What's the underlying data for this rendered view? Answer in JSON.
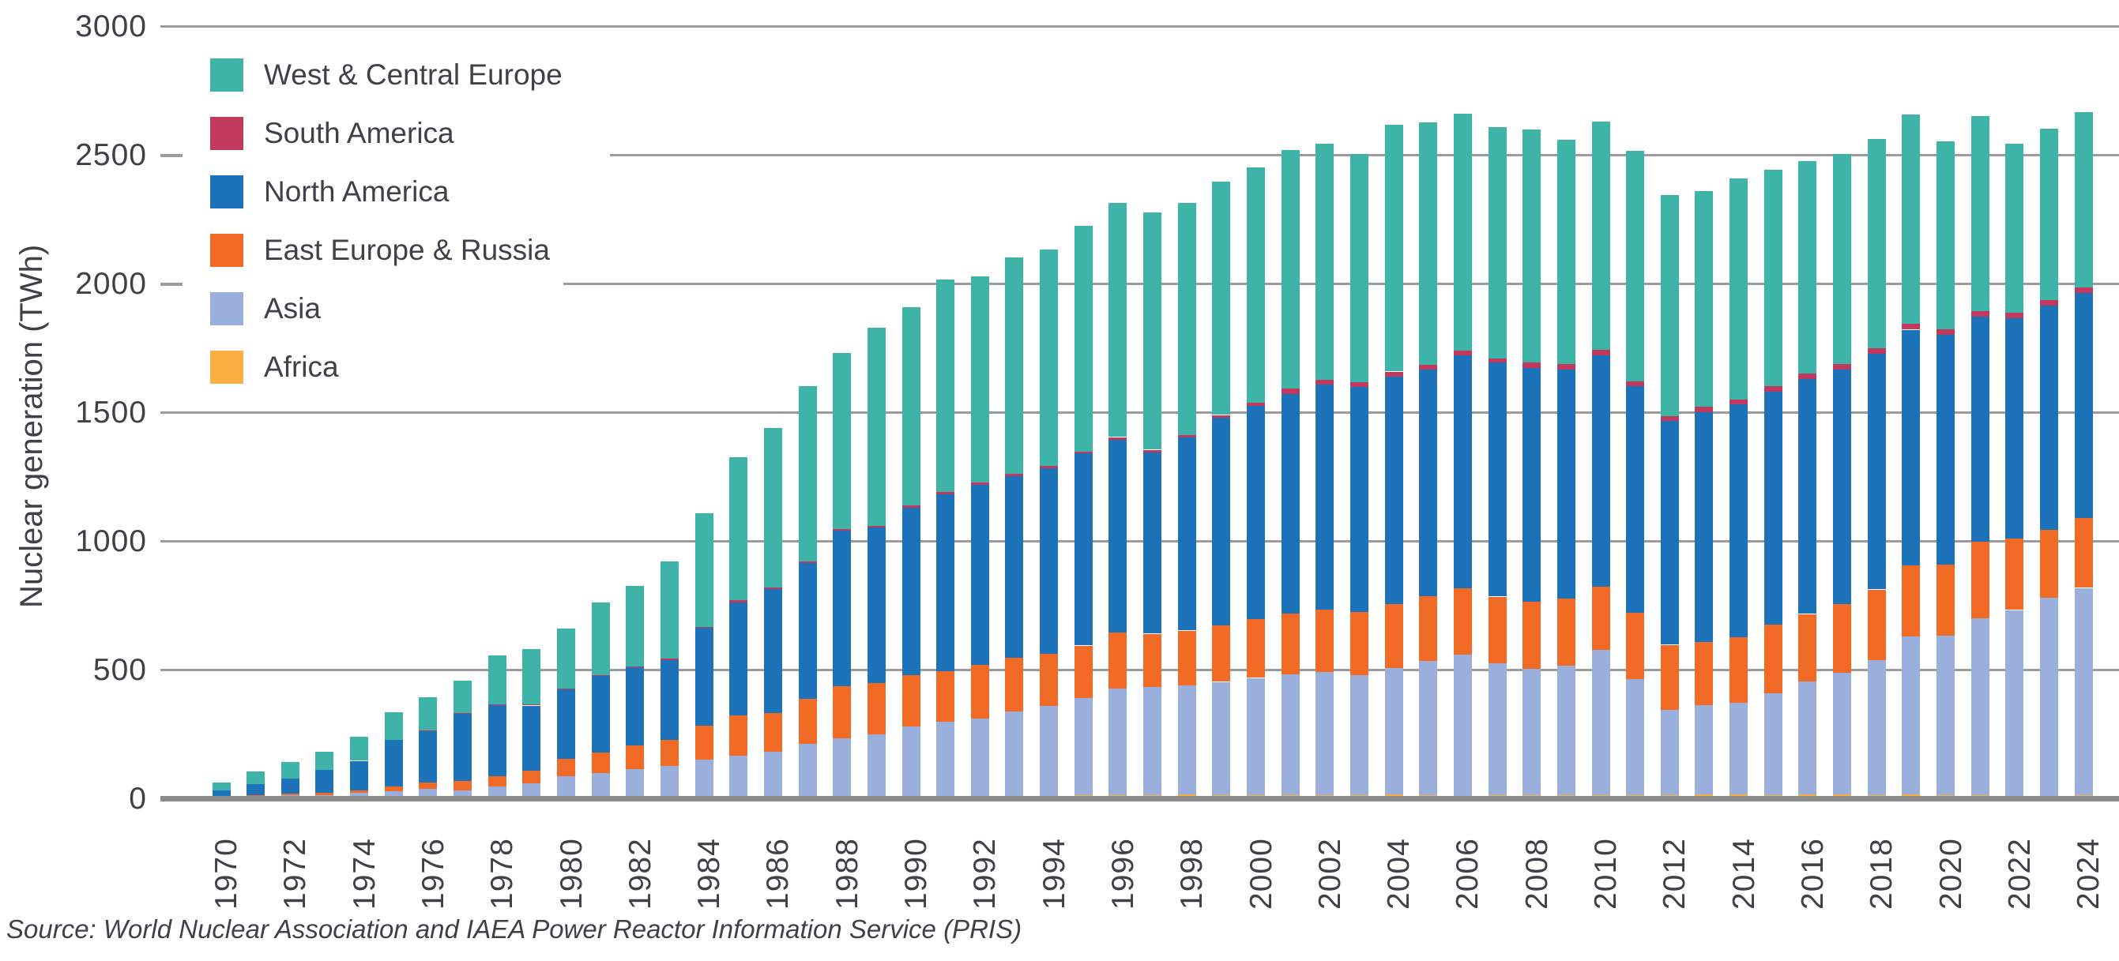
{
  "source_note": "Source: World Nuclear Association and IAEA Power Reactor Information Service (PRIS)",
  "chart_data": {
    "type": "bar",
    "stacked": true,
    "title": "",
    "xlabel": "",
    "ylabel": "Nuclear generation (TWh)",
    "ylim": [
      0,
      3000
    ],
    "yticks": [
      3000,
      2500,
      2000,
      1500,
      1000,
      500,
      0
    ],
    "grid": "horizontal",
    "legend_position": "top-left",
    "legend_order": [
      "West & Central Europe",
      "South America",
      "North America",
      "East Europe & Russia",
      "Asia",
      "Africa"
    ],
    "x": [
      1970,
      1971,
      1972,
      1973,
      1974,
      1975,
      1976,
      1977,
      1978,
      1979,
      1980,
      1981,
      1982,
      1983,
      1984,
      1985,
      1986,
      1987,
      1988,
      1989,
      1990,
      1991,
      1992,
      1993,
      1994,
      1995,
      1996,
      1997,
      1998,
      1999,
      2000,
      2001,
      2002,
      2003,
      2004,
      2005,
      2006,
      2007,
      2008,
      2009,
      2010,
      2011,
      2012,
      2013,
      2014,
      2015,
      2016,
      2017,
      2018,
      2019,
      2020,
      2021,
      2022,
      2023,
      2024
    ],
    "xtick_labels": [
      "1970",
      "1972",
      "1974",
      "1976",
      "1978",
      "1980",
      "1982",
      "1984",
      "1986",
      "1988",
      "1990",
      "1992",
      "1994",
      "1996",
      "1998",
      "2000",
      "2002",
      "2004",
      "2006",
      "2008",
      "2010",
      "2012",
      "2014",
      "2016",
      "2018",
      "2020",
      "2022",
      "2024"
    ],
    "units": "TWh",
    "series": [
      {
        "name": "Africa",
        "color": "#f9af42",
        "values": [
          0,
          0,
          0,
          0,
          0,
          0,
          0,
          0,
          0,
          0,
          0,
          0,
          0,
          0,
          5,
          5,
          6,
          6,
          7,
          9,
          8,
          9,
          9,
          7,
          10,
          11,
          12,
          13,
          14,
          13,
          13,
          11,
          12,
          13,
          14,
          12,
          10,
          11,
          12,
          12,
          12,
          13,
          13,
          14,
          15,
          12,
          15,
          15,
          11,
          14,
          12,
          12,
          10,
          8,
          13
        ]
      },
      {
        "name": "Asia",
        "color": "#9aafdb",
        "values": [
          5,
          8,
          11,
          12,
          20,
          28,
          36,
          32,
          46,
          58,
          86,
          98,
          112,
          125,
          145,
          160,
          175,
          205,
          225,
          240,
          272,
          290,
          300,
          330,
          350,
          380,
          415,
          420,
          425,
          440,
          455,
          470,
          480,
          465,
          492,
          523,
          549,
          515,
          492,
          504,
          564,
          450,
          332,
          348,
          356,
          397,
          440,
          473,
          527,
          616,
          620,
          687,
          722,
          772,
          805
        ]
      },
      {
        "name": "East Europe & Russia",
        "color": "#f26b26",
        "values": [
          4,
          5,
          7,
          9,
          12,
          18,
          24,
          36,
          40,
          50,
          67,
          80,
          93,
          103,
          133,
          156,
          151,
          175,
          203,
          200,
          200,
          195,
          208,
          208,
          202,
          203,
          217,
          207,
          213,
          220,
          227,
          236,
          241,
          246,
          250,
          251,
          257,
          258,
          261,
          260,
          247,
          257,
          253,
          245,
          254,
          267,
          262,
          268,
          274,
          276,
          276,
          297,
          278,
          263,
          270
        ]
      },
      {
        "name": "North America",
        "color": "#1c73b9",
        "values": [
          23,
          42,
          60,
          89,
          114,
          180,
          200,
          260,
          277,
          253,
          270,
          297,
          305,
          310,
          380,
          441,
          481,
          528,
          605,
          604,
          649,
          687,
          700,
          707,
          720,
          745,
          750,
          705,
          750,
          807,
          830,
          855,
          875,
          873,
          883,
          880,
          906,
          908,
          908,
          891,
          899,
          881,
          867,
          894,
          905,
          904,
          911,
          911,
          916,
          915,
          893,
          876,
          856,
          872,
          875
        ]
      },
      {
        "name": "South America",
        "color": "#c13a5e",
        "values": [
          0,
          0,
          0,
          0,
          1,
          2,
          3,
          2,
          3,
          3,
          2,
          3,
          2,
          4,
          4,
          8,
          7,
          6,
          6,
          6,
          9,
          8,
          9,
          9,
          9,
          9,
          10,
          10,
          10,
          10,
          11,
          20,
          19,
          19,
          19,
          17,
          18,
          18,
          20,
          20,
          20,
          20,
          21,
          21,
          20,
          20,
          22,
          21,
          22,
          22,
          22,
          22,
          22,
          22,
          23
        ]
      },
      {
        "name": "West & Central Europe",
        "color": "#3db4a7",
        "values": [
          30,
          48,
          64,
          71,
          93,
          106,
          129,
          125,
          189,
          216,
          233,
          282,
          313,
          378,
          443,
          555,
          620,
          680,
          684,
          771,
          771,
          825,
          801,
          839,
          839,
          876,
          908,
          921,
          901,
          904,
          913,
          925,
          918,
          888,
          958,
          943,
          921,
          898,
          905,
          871,
          888,
          897,
          860,
          837,
          860,
          841,
          826,
          815,
          813,
          814,
          730,
          759,
          657,
          665,
          681
        ]
      }
    ]
  }
}
